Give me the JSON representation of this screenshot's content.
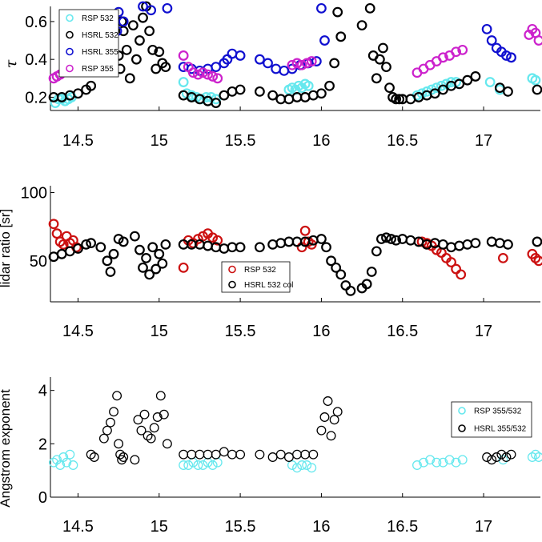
{
  "chart_data": [
    {
      "type": "scatter",
      "ylabel": "τ",
      "xlim": [
        14.33,
        17.35
      ],
      "ylim": [
        0.13,
        0.68
      ],
      "xticks": [
        "14.5",
        "15",
        "15.5",
        "16",
        "16.5",
        "17"
      ],
      "yticks": [
        "0.2",
        "0.4",
        "0.6"
      ],
      "legend_position": "top-left",
      "series": [
        {
          "name": "RSP 532",
          "color": "#66e8ee",
          "x": [
            14.36,
            14.38,
            14.4,
            14.42,
            14.44,
            14.46,
            15.15,
            15.17,
            15.2,
            15.23,
            15.26,
            15.29,
            15.32,
            15.35,
            15.8,
            15.82,
            15.84,
            15.86,
            15.88,
            15.9,
            15.92,
            16.59,
            16.62,
            16.65,
            16.68,
            16.71,
            16.74,
            16.77,
            16.8,
            16.83,
            17.04,
            17.1,
            17.3,
            17.32
          ],
          "y": [
            0.17,
            0.19,
            0.19,
            0.18,
            0.19,
            0.2,
            0.28,
            0.22,
            0.21,
            0.2,
            0.19,
            0.2,
            0.2,
            0.19,
            0.24,
            0.25,
            0.24,
            0.26,
            0.25,
            0.27,
            0.26,
            0.21,
            0.22,
            0.23,
            0.24,
            0.25,
            0.26,
            0.27,
            0.28,
            0.28,
            0.28,
            0.24,
            0.3,
            0.29
          ]
        },
        {
          "name": "HSRL 532",
          "color": "#000000",
          "x": [
            14.35,
            14.4,
            14.45,
            14.5,
            14.55,
            14.58,
            14.75,
            14.76,
            14.77,
            14.78,
            14.8,
            14.82,
            14.84,
            14.86,
            14.88,
            14.9,
            14.92,
            14.94,
            14.96,
            14.98,
            15.0,
            15.02,
            15.04,
            15.15,
            15.2,
            15.25,
            15.3,
            15.35,
            15.4,
            15.45,
            15.5,
            15.62,
            15.7,
            15.75,
            15.8,
            15.85,
            15.9,
            15.95,
            16.0,
            16.05,
            16.08,
            16.1,
            16.12,
            16.25,
            16.3,
            16.32,
            16.34,
            16.36,
            16.38,
            16.4,
            16.42,
            16.44,
            16.46,
            16.48,
            16.5,
            16.55,
            16.6,
            16.65,
            16.7,
            16.75,
            16.8,
            16.85,
            16.9,
            16.95,
            17.1,
            17.15,
            17.33
          ],
          "y": [
            0.2,
            0.2,
            0.21,
            0.22,
            0.24,
            0.26,
            0.42,
            0.35,
            0.6,
            0.55,
            0.45,
            0.3,
            0.58,
            0.4,
            0.5,
            0.62,
            0.68,
            0.55,
            0.45,
            0.35,
            0.44,
            0.38,
            0.36,
            0.21,
            0.2,
            0.19,
            0.18,
            0.17,
            0.21,
            0.23,
            0.24,
            0.23,
            0.21,
            0.19,
            0.19,
            0.2,
            0.2,
            0.21,
            0.22,
            0.26,
            0.38,
            0.65,
            0.52,
            0.58,
            0.67,
            0.42,
            0.3,
            0.4,
            0.46,
            0.36,
            0.25,
            0.2,
            0.19,
            0.19,
            0.19,
            0.19,
            0.2,
            0.21,
            0.22,
            0.24,
            0.26,
            0.27,
            0.29,
            0.31,
            0.25,
            0.23,
            0.24
          ]
        },
        {
          "name": "HSRL 355",
          "color": "#1010d0",
          "x": [
            14.6,
            14.62,
            14.65,
            14.68,
            14.7,
            14.72,
            14.74,
            14.75,
            14.78,
            14.9,
            14.95,
            15.05,
            15.15,
            15.2,
            15.25,
            15.3,
            15.35,
            15.4,
            15.42,
            15.45,
            15.5,
            15.62,
            15.67,
            15.72,
            15.77,
            15.82,
            15.87,
            15.92,
            15.97,
            16.0,
            16.02,
            17.02,
            17.05,
            17.08,
            17.11,
            17.14,
            17.17
          ],
          "y": [
            0.6,
            0.62,
            0.56,
            0.58,
            0.6,
            0.62,
            0.55,
            0.65,
            0.6,
            0.68,
            0.66,
            0.67,
            0.36,
            0.35,
            0.34,
            0.35,
            0.36,
            0.38,
            0.4,
            0.43,
            0.42,
            0.4,
            0.38,
            0.35,
            0.34,
            0.35,
            0.37,
            0.38,
            0.39,
            0.67,
            0.5,
            0.56,
            0.5,
            0.46,
            0.44,
            0.42,
            0.41
          ]
        },
        {
          "name": "RSP 355",
          "color": "#cc22cc",
          "x": [
            14.35,
            14.37,
            14.39,
            15.15,
            15.18,
            15.21,
            15.24,
            15.27,
            15.3,
            15.33,
            15.36,
            15.82,
            15.85,
            15.88,
            15.91,
            15.94,
            16.59,
            16.63,
            16.67,
            16.71,
            16.75,
            16.79,
            16.83,
            16.87,
            17.28,
            17.3,
            17.32,
            17.34
          ],
          "y": [
            0.3,
            0.31,
            0.32,
            0.42,
            0.36,
            0.33,
            0.32,
            0.33,
            0.32,
            0.31,
            0.3,
            0.37,
            0.38,
            0.37,
            0.38,
            0.39,
            0.33,
            0.35,
            0.37,
            0.39,
            0.41,
            0.42,
            0.44,
            0.45,
            0.53,
            0.56,
            0.54,
            0.5
          ]
        }
      ]
    },
    {
      "type": "scatter",
      "ylabel": "lidar ratio [sr]",
      "xlim": [
        14.33,
        17.35
      ],
      "ylim": [
        20,
        105
      ],
      "xticks": [
        "14.5",
        "15",
        "15.5",
        "16",
        "16.5",
        "17"
      ],
      "yticks": [
        "50",
        "100"
      ],
      "legend_position": "bottom-center",
      "series": [
        {
          "name": "RSP 532",
          "color": "#cc1111",
          "x": [
            14.35,
            14.37,
            14.39,
            14.41,
            14.43,
            14.45,
            14.47,
            14.49,
            15.15,
            15.18,
            15.21,
            15.24,
            15.27,
            15.3,
            15.33,
            15.36,
            15.88,
            15.9,
            15.92,
            15.94,
            16.62,
            16.65,
            16.68,
            16.71,
            16.74,
            16.77,
            16.8,
            16.83,
            16.86,
            17.12,
            17.3,
            17.32,
            17.34
          ],
          "y": [
            77,
            70,
            64,
            62,
            68,
            63,
            65,
            60,
            45,
            65,
            63,
            66,
            68,
            70,
            67,
            65,
            60,
            72,
            64,
            62,
            64,
            63,
            61,
            58,
            56,
            52,
            49,
            44,
            40,
            52,
            55,
            52,
            50
          ]
        },
        {
          "name": "HSRL 532 col",
          "color": "#000000",
          "x": [
            14.35,
            14.4,
            14.45,
            14.5,
            14.55,
            14.58,
            14.64,
            14.68,
            14.7,
            14.72,
            14.75,
            14.78,
            14.85,
            14.88,
            14.9,
            14.92,
            14.94,
            14.96,
            14.98,
            15.0,
            15.02,
            15.04,
            15.15,
            15.2,
            15.25,
            15.3,
            15.35,
            15.4,
            15.45,
            15.5,
            15.62,
            15.7,
            15.75,
            15.8,
            15.85,
            15.9,
            15.95,
            16.0,
            16.03,
            16.06,
            16.09,
            16.12,
            16.15,
            16.18,
            16.25,
            16.28,
            16.31,
            16.34,
            16.37,
            16.4,
            16.43,
            16.46,
            16.5,
            16.55,
            16.6,
            16.65,
            16.7,
            16.75,
            16.8,
            16.85,
            16.9,
            16.95,
            17.05,
            17.1,
            17.15,
            17.33
          ],
          "y": [
            53,
            55,
            57,
            59,
            62,
            63,
            60,
            50,
            42,
            55,
            66,
            64,
            68,
            58,
            45,
            52,
            40,
            60,
            44,
            55,
            48,
            62,
            62,
            62,
            62,
            61,
            60,
            59,
            60,
            60,
            60,
            62,
            63,
            64,
            64,
            64,
            65,
            66,
            60,
            50,
            45,
            40,
            32,
            28,
            30,
            33,
            42,
            57,
            66,
            67,
            66,
            65,
            66,
            65,
            64,
            62,
            63,
            62,
            60,
            61,
            62,
            63,
            64,
            63,
            62,
            64
          ]
        }
      ]
    },
    {
      "type": "scatter",
      "ylabel": "Angstrom exponent",
      "xlim": [
        14.33,
        17.35
      ],
      "ylim": [
        0,
        4.5
      ],
      "xticks": [
        "14.5",
        "15",
        "15.5",
        "16",
        "16.5",
        "17"
      ],
      "yticks": [
        "0",
        "2",
        "4"
      ],
      "legend_position": "top-right",
      "series": [
        {
          "name": "RSP 355/532",
          "color": "#66e8ee",
          "x": [
            14.35,
            14.37,
            14.39,
            14.41,
            14.43,
            14.45,
            14.47,
            15.15,
            15.18,
            15.21,
            15.24,
            15.27,
            15.3,
            15.33,
            15.36,
            15.82,
            15.85,
            15.88,
            15.91,
            15.94,
            16.59,
            16.63,
            16.67,
            16.71,
            16.75,
            16.79,
            16.83,
            16.87,
            17.12,
            17.3,
            17.32,
            17.34
          ],
          "y": [
            1.3,
            1.4,
            1.2,
            1.5,
            1.3,
            1.6,
            1.2,
            1.2,
            1.2,
            1.3,
            1.2,
            1.2,
            1.3,
            1.2,
            1.3,
            1.2,
            1.1,
            1.2,
            1.2,
            1.1,
            1.2,
            1.3,
            1.4,
            1.3,
            1.3,
            1.4,
            1.3,
            1.4,
            1.4,
            1.5,
            1.6,
            1.5
          ]
        },
        {
          "name": "HSRL 355/532",
          "color": "#000000",
          "x": [
            14.58,
            14.6,
            14.66,
            14.68,
            14.7,
            14.72,
            14.74,
            14.75,
            14.76,
            14.77,
            14.78,
            14.85,
            14.87,
            14.89,
            14.91,
            14.93,
            14.95,
            14.97,
            14.99,
            15.01,
            15.03,
            15.05,
            15.15,
            15.2,
            15.25,
            15.3,
            15.35,
            15.4,
            15.45,
            15.5,
            15.62,
            15.7,
            15.75,
            15.8,
            15.85,
            15.9,
            15.95,
            16.0,
            16.02,
            16.04,
            16.06,
            16.08,
            16.1,
            17.02,
            17.05,
            17.08,
            17.11,
            17.14,
            17.17
          ],
          "y": [
            1.6,
            1.5,
            2.2,
            2.5,
            2.8,
            3.2,
            3.8,
            2.0,
            1.6,
            1.4,
            1.5,
            1.4,
            2.9,
            2.5,
            3.1,
            2.3,
            2.2,
            2.6,
            3.0,
            3.8,
            3.1,
            2.0,
            1.6,
            1.6,
            1.6,
            1.6,
            1.6,
            1.7,
            1.6,
            1.6,
            1.6,
            1.5,
            1.6,
            1.5,
            1.6,
            1.6,
            1.6,
            2.5,
            3.0,
            3.6,
            2.3,
            2.9,
            3.2,
            1.5,
            1.4,
            1.5,
            1.6,
            1.5,
            1.6
          ]
        }
      ]
    }
  ]
}
